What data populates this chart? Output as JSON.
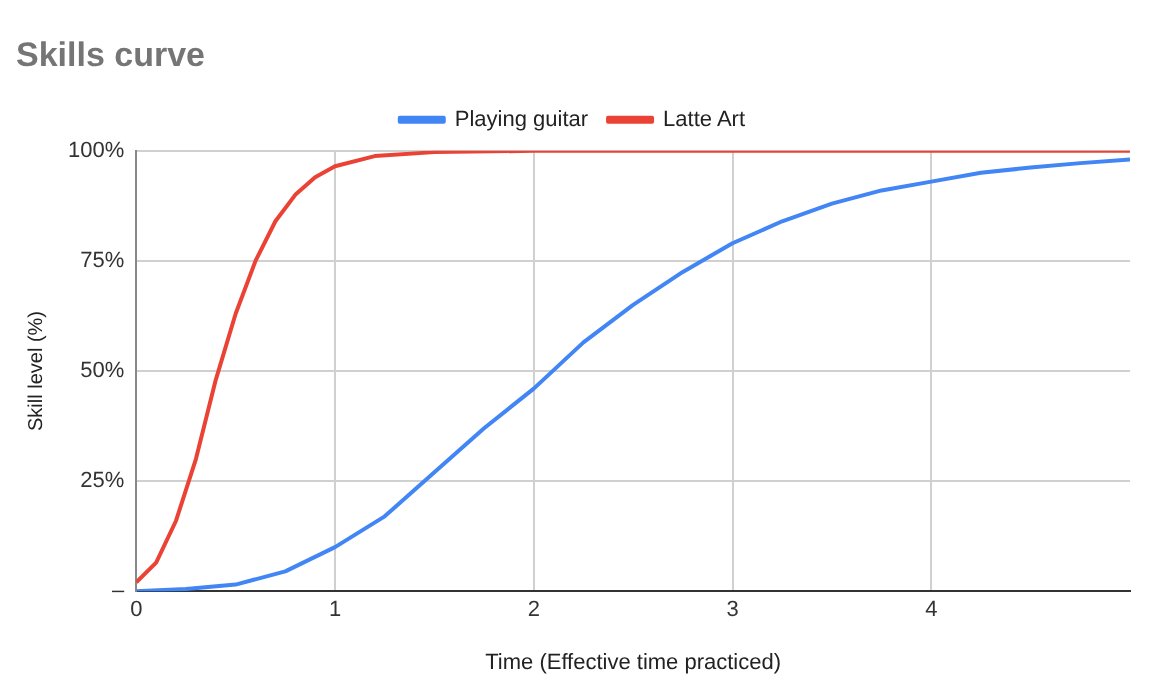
{
  "chart_data": {
    "type": "line",
    "title": "Skills curve",
    "xlabel": "Time (Effective time practiced)",
    "ylabel": "Skill level (%)",
    "series": [
      {
        "name": "Playing guitar",
        "color": "#4285f4",
        "x": [
          0,
          0.25,
          0.5,
          0.75,
          1,
          1.25,
          1.5,
          1.75,
          2,
          2.25,
          2.5,
          2.75,
          3,
          3.25,
          3.5,
          3.75,
          4,
          4.25,
          4.5,
          4.75,
          5
        ],
        "values": [
          0,
          0.5,
          1.5,
          4.5,
          10,
          17,
          27,
          37,
          46,
          56.5,
          65,
          72.5,
          79,
          84,
          88,
          91,
          93,
          95,
          96.2,
          97.2,
          98
        ]
      },
      {
        "name": "Latte Art",
        "color": "#ea4335",
        "x": [
          0,
          0.1,
          0.2,
          0.3,
          0.4,
          0.5,
          0.6,
          0.7,
          0.8,
          0.9,
          1,
          1.2,
          1.5,
          2,
          3,
          4,
          5
        ],
        "values": [
          2,
          6.5,
          16,
          30,
          48,
          63,
          75,
          84,
          90,
          94,
          96.5,
          98.8,
          99.7,
          100,
          100,
          100,
          100
        ]
      }
    ],
    "xlim": [
      0,
      5
    ],
    "xticks": [
      0,
      1,
      2,
      3,
      4
    ],
    "ylim": [
      0,
      100
    ],
    "yticks": [
      {
        "value": 0,
        "label": "–"
      },
      {
        "value": 25,
        "label": "25%"
      },
      {
        "value": 50,
        "label": "50%"
      },
      {
        "value": 75,
        "label": "75%"
      },
      {
        "value": 100,
        "label": "100%"
      }
    ],
    "grid": true,
    "legend": "top",
    "marker": "none",
    "line_style": "solid"
  }
}
